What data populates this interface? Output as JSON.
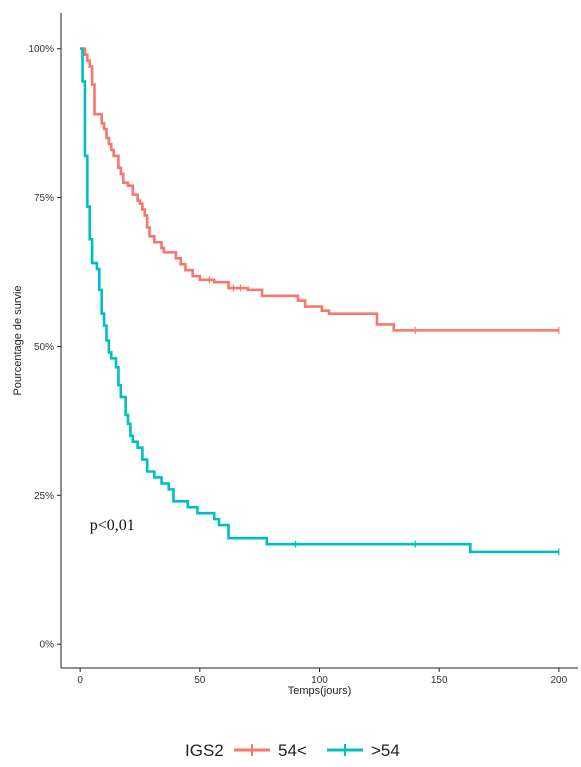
{
  "chart_data": {
    "type": "line",
    "subtype": "kaplan-meier step",
    "xlabel": "Temps(jours)",
    "ylabel": "Pourcentage de survie",
    "xlim": [
      -8,
      208
    ],
    "ylim": [
      -0.04,
      1.06
    ],
    "x_ticks": [
      0,
      50,
      100,
      150,
      200
    ],
    "x_tick_labels": [
      "0",
      "50",
      "100",
      "150",
      "200"
    ],
    "y_ticks": [
      0,
      0.25,
      0.5,
      0.75,
      1.0
    ],
    "y_tick_labels": [
      "0%",
      "25%",
      "50%",
      "75%",
      "100%"
    ],
    "grid": false,
    "annotation": "p<0,01",
    "legend": {
      "title": "IGS2",
      "position": "bottom",
      "entries": [
        "54<",
        ">54"
      ]
    },
    "series": [
      {
        "name": "54<",
        "color": "#F8766D",
        "points": [
          [
            0,
            1.0
          ],
          [
            2,
            0.99
          ],
          [
            3,
            0.98
          ],
          [
            4,
            0.97
          ],
          [
            5,
            0.94
          ],
          [
            6,
            0.89
          ],
          [
            9,
            0.875
          ],
          [
            10,
            0.865
          ],
          [
            11,
            0.85
          ],
          [
            12,
            0.84
          ],
          [
            13,
            0.83
          ],
          [
            14,
            0.82
          ],
          [
            16,
            0.8
          ],
          [
            17,
            0.79
          ],
          [
            18,
            0.775
          ],
          [
            20,
            0.77
          ],
          [
            22,
            0.755
          ],
          [
            24,
            0.745
          ],
          [
            25,
            0.74
          ],
          [
            26,
            0.73
          ],
          [
            27,
            0.72
          ],
          [
            28,
            0.7
          ],
          [
            29,
            0.685
          ],
          [
            31,
            0.675
          ],
          [
            34,
            0.665
          ],
          [
            35,
            0.658
          ],
          [
            40,
            0.648
          ],
          [
            42,
            0.638
          ],
          [
            44,
            0.628
          ],
          [
            47,
            0.618
          ],
          [
            50,
            0.612
          ],
          [
            56,
            0.608
          ],
          [
            62,
            0.598
          ],
          [
            70,
            0.595
          ],
          [
            76,
            0.585
          ],
          [
            91,
            0.577
          ],
          [
            94,
            0.567
          ],
          [
            101,
            0.56
          ],
          [
            104,
            0.555
          ],
          [
            124,
            0.537
          ],
          [
            131,
            0.527
          ],
          [
            200,
            0.527
          ]
        ],
        "censored": [
          [
            54,
            0.612
          ],
          [
            64,
            0.598
          ],
          [
            67,
            0.598
          ],
          [
            140,
            0.527
          ],
          [
            200,
            0.527
          ]
        ]
      },
      {
        "name": ">54",
        "color": "#00BFC4",
        "points": [
          [
            0,
            1.0
          ],
          [
            1,
            0.945
          ],
          [
            2,
            0.82
          ],
          [
            3,
            0.735
          ],
          [
            4,
            0.68
          ],
          [
            5,
            0.64
          ],
          [
            7,
            0.63
          ],
          [
            8,
            0.595
          ],
          [
            9,
            0.555
          ],
          [
            10,
            0.535
          ],
          [
            11,
            0.51
          ],
          [
            12,
            0.49
          ],
          [
            13,
            0.48
          ],
          [
            15,
            0.465
          ],
          [
            16,
            0.435
          ],
          [
            17,
            0.415
          ],
          [
            19,
            0.385
          ],
          [
            20,
            0.37
          ],
          [
            21,
            0.35
          ],
          [
            22,
            0.34
          ],
          [
            24,
            0.33
          ],
          [
            26,
            0.31
          ],
          [
            28,
            0.29
          ],
          [
            31,
            0.28
          ],
          [
            34,
            0.27
          ],
          [
            37,
            0.26
          ],
          [
            39,
            0.24
          ],
          [
            45,
            0.23
          ],
          [
            49,
            0.22
          ],
          [
            56,
            0.21
          ],
          [
            58,
            0.2
          ],
          [
            62,
            0.178
          ],
          [
            78,
            0.168
          ],
          [
            163,
            0.155
          ],
          [
            200,
            0.155
          ]
        ],
        "censored": [
          [
            90,
            0.168
          ],
          [
            140,
            0.168
          ],
          [
            200,
            0.155
          ]
        ]
      }
    ]
  }
}
